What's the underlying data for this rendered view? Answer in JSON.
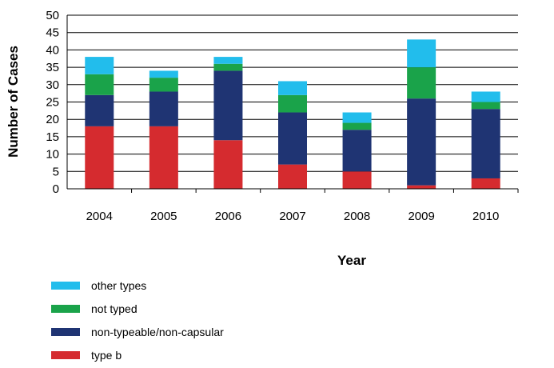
{
  "chart_data": {
    "type": "bar",
    "stacked": true,
    "categories": [
      "2004",
      "2005",
      "2006",
      "2007",
      "2008",
      "2009",
      "2010"
    ],
    "series": [
      {
        "name": "type b",
        "color": "#d52b2f",
        "values": [
          18,
          18,
          14,
          7,
          5,
          1,
          3
        ]
      },
      {
        "name": "non-typeable/non-capsular",
        "color": "#1f3473",
        "values": [
          9,
          10,
          20,
          15,
          12,
          25,
          20
        ]
      },
      {
        "name": "not typed",
        "color": "#1aa34a",
        "values": [
          6,
          4,
          2,
          5,
          2,
          9,
          2
        ]
      },
      {
        "name": "other types",
        "color": "#22bdec",
        "values": [
          5,
          2,
          2,
          4,
          3,
          8,
          3
        ]
      }
    ],
    "xlabel": "Year",
    "ylabel": "Number of Cases",
    "ylim": [
      0,
      50
    ],
    "yticks": [
      "0",
      "5",
      "10",
      "15",
      "20",
      "25",
      "30",
      "35",
      "40",
      "45",
      "50"
    ],
    "grid": true,
    "legend_position": "bottom-left",
    "legend_order": [
      "other types",
      "not typed",
      "non-typeable/non-capsular",
      "type b"
    ]
  }
}
